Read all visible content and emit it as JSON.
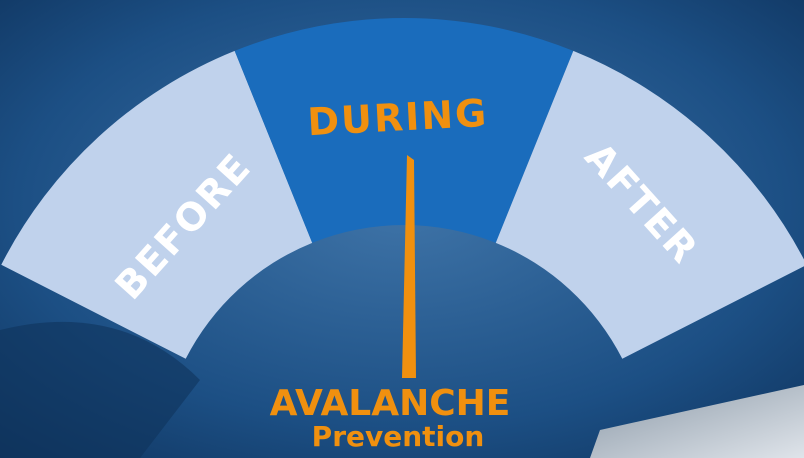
{
  "gauge": {
    "segments": [
      {
        "label": "BEFORE"
      },
      {
        "label": "DURING"
      },
      {
        "label": "AFTER"
      }
    ]
  },
  "title": {
    "main": "AVALANCHE",
    "sub": "Prevention"
  }
}
